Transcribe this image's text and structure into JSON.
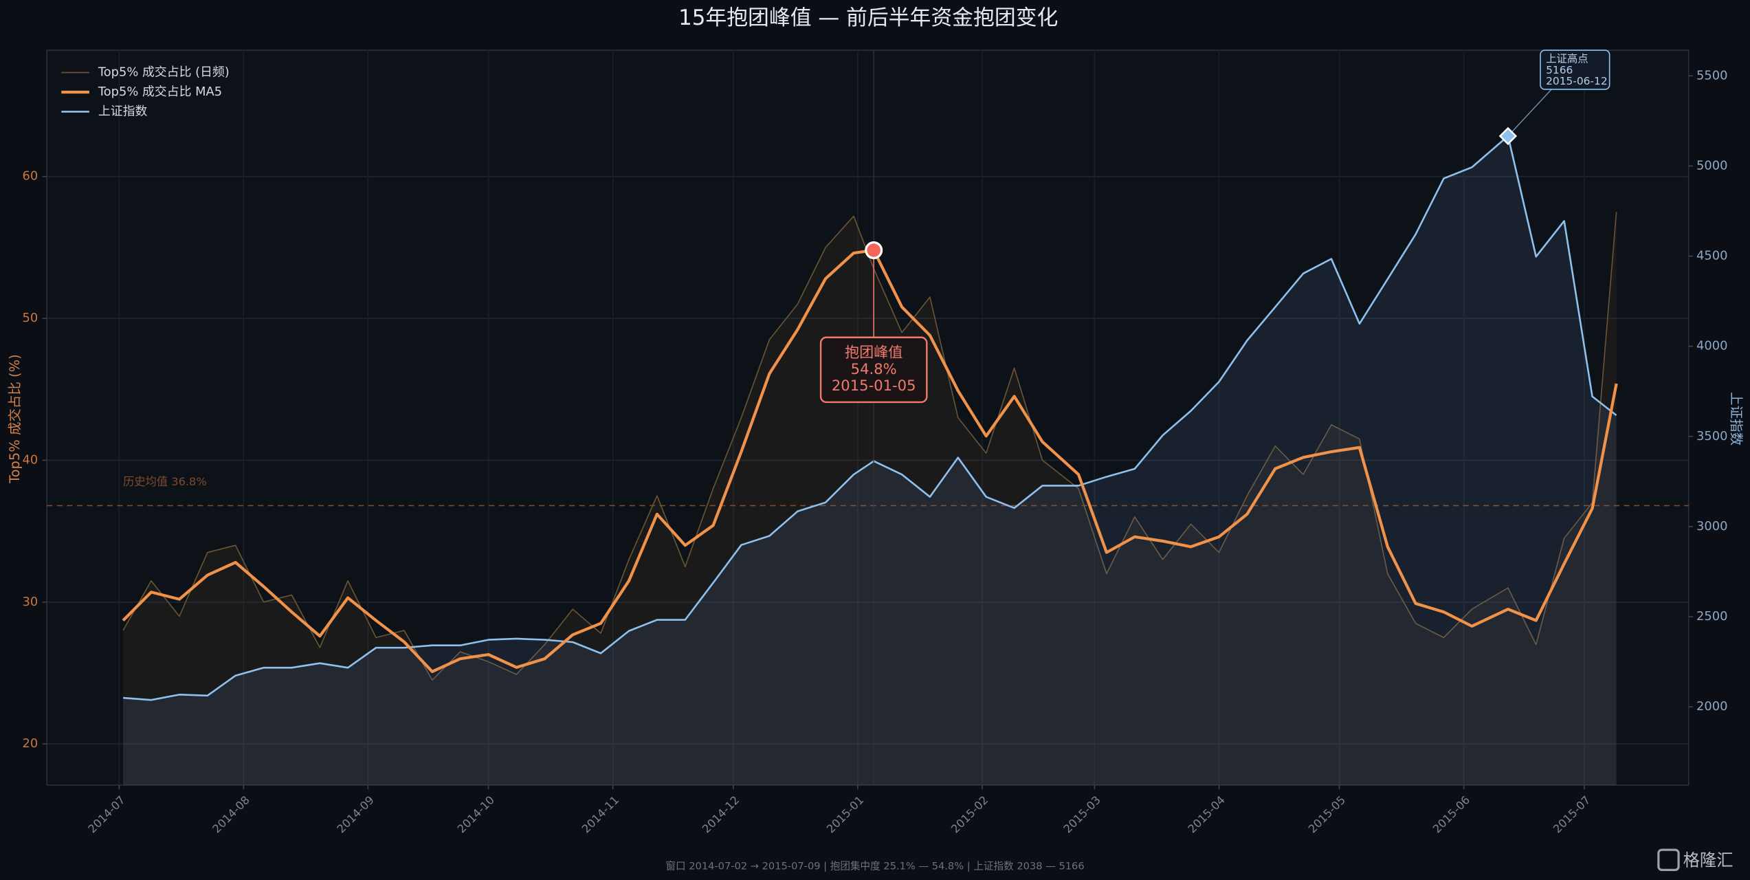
{
  "chart_data": {
    "type": "line",
    "title": "15年抱团峰值 — 前后半年资金抱团变化",
    "y_label": "Top5% 成交占比 (%)",
    "y2_label": "上证指数",
    "x": [
      "2014-07-02",
      "2014-07-09",
      "2014-07-16",
      "2014-07-23",
      "2014-07-30",
      "2014-08-06",
      "2014-08-13",
      "2014-08-20",
      "2014-08-27",
      "2014-09-03",
      "2014-09-10",
      "2014-09-17",
      "2014-09-24",
      "2014-10-01",
      "2014-10-08",
      "2014-10-15",
      "2014-10-22",
      "2014-10-29",
      "2014-11-05",
      "2014-11-12",
      "2014-11-19",
      "2014-11-26",
      "2014-12-03",
      "2014-12-10",
      "2014-12-17",
      "2014-12-24",
      "2014-12-31",
      "2015-01-05",
      "2015-01-12",
      "2015-01-19",
      "2015-01-26",
      "2015-02-02",
      "2015-02-09",
      "2015-02-16",
      "2015-02-25",
      "2015-03-04",
      "2015-03-11",
      "2015-03-18",
      "2015-03-25",
      "2015-04-01",
      "2015-04-08",
      "2015-04-15",
      "2015-04-22",
      "2015-04-29",
      "2015-05-06",
      "2015-05-13",
      "2015-05-20",
      "2015-05-27",
      "2015-06-03",
      "2015-06-12",
      "2015-06-19",
      "2015-06-26",
      "2015-07-03",
      "2015-07-09"
    ],
    "series": [
      {
        "name": "Top5% 成交占比 (日频)",
        "color": "#6b5434",
        "values": [
          28.0,
          31.5,
          29.0,
          33.5,
          34.0,
          30.0,
          30.5,
          26.8,
          31.5,
          27.5,
          28.0,
          24.5,
          26.5,
          25.8,
          24.9,
          27.0,
          29.5,
          27.8,
          33.0,
          37.5,
          32.5,
          38.0,
          43.0,
          48.5,
          51.0,
          55.0,
          57.2,
          53.5,
          49.0,
          51.5,
          43.0,
          40.5,
          46.5,
          40.0,
          38.0,
          32.0,
          36.0,
          33.0,
          35.5,
          33.5,
          37.5,
          41.0,
          39.0,
          42.5,
          41.5,
          32.0,
          28.5,
          27.5,
          29.5,
          31.0,
          27.0,
          34.5,
          37.0,
          57.5
        ]
      },
      {
        "name": "Top5% 成交占比 MA5",
        "color": "#f0924a",
        "values": [
          28.7,
          30.7,
          30.2,
          31.9,
          32.8,
          31.1,
          29.3,
          27.6,
          30.3,
          28.7,
          27.2,
          25.1,
          26.0,
          26.3,
          25.4,
          26.0,
          27.7,
          28.5,
          31.5,
          36.2,
          34.0,
          35.4,
          40.6,
          46.1,
          49.2,
          52.8,
          54.6,
          54.8,
          50.8,
          48.8,
          44.9,
          41.7,
          44.5,
          41.3,
          39.0,
          33.5,
          34.6,
          34.3,
          33.9,
          34.6,
          36.2,
          39.4,
          40.2,
          40.6,
          40.9,
          33.9,
          29.9,
          29.3,
          28.3,
          29.5,
          28.7,
          32.7,
          36.6,
          45.4
        ]
      },
      {
        "name": "上证指数",
        "color": "#8ec1ee",
        "axis": "y2",
        "values": [
          2050,
          2038,
          2068,
          2062,
          2173,
          2217,
          2217,
          2242,
          2217,
          2328,
          2328,
          2341,
          2341,
          2372,
          2378,
          2372,
          2359,
          2297,
          2421,
          2483,
          2483,
          2688,
          2898,
          2948,
          3084,
          3134,
          3289,
          3363,
          3289,
          3165,
          3382,
          3165,
          3103,
          3227,
          3227,
          3276,
          3320,
          3506,
          3642,
          3803,
          4032,
          4218,
          4404,
          4485,
          4125,
          4373,
          4621,
          4931,
          4993,
          5166,
          4497,
          4695,
          3722,
          3617
        ]
      }
    ],
    "xlim": [
      "2014-06-13",
      "2015-07-27"
    ],
    "xticks": [
      "2014-07",
      "2014-08",
      "2014-09",
      "2014-10",
      "2014-11",
      "2014-12",
      "2015-01",
      "2015-02",
      "2015-03",
      "2015-04",
      "2015-05",
      "2015-06",
      "2015-07"
    ],
    "ylim": [
      17.1,
      68.9
    ],
    "yticks": [
      20,
      30,
      40,
      50,
      60
    ],
    "y2lim": [
      1566,
      5642
    ],
    "y2ticks": [
      2000,
      2500,
      3000,
      3500,
      4000,
      4500,
      5000,
      5500
    ],
    "grid": true,
    "legend": "upper-left",
    "mean_line": {
      "value": 36.8,
      "label": "历史均值 36.8%",
      "color": "#c8703a"
    },
    "annotations": [
      {
        "lines": [
          "抱团峰值",
          "54.8%",
          "2015-01-05"
        ],
        "x": "2015-01-05",
        "y": 54.8,
        "color": "#f07a6c"
      },
      {
        "lines": [
          "上证高点",
          "5166",
          "2015-06-12"
        ],
        "x": "2015-06-12",
        "y": 5166,
        "axis": "y2",
        "color": "#8ec1ee"
      }
    ],
    "footer": "窗口 2014-07-02 → 2015-07-09   |   抱团集中度 25.1% — 54.8%   |   上证指数 2038 — 5166",
    "watermark": "格隆汇"
  }
}
